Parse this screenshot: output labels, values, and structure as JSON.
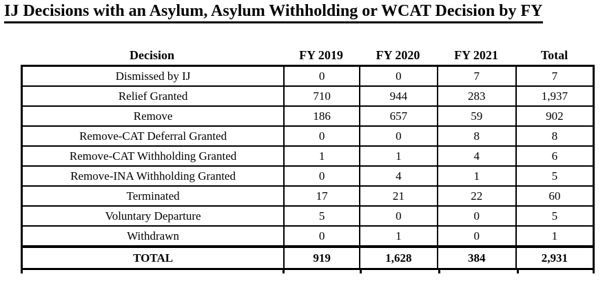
{
  "page_title": "IJ Decisions with an Asylum, Asylum Withholding or WCAT Decision by FY",
  "table": {
    "columns": [
      "Decision",
      "FY 2019",
      "FY 2020",
      "FY 2021",
      "Total"
    ],
    "rows": [
      [
        "Dismissed by IJ",
        "0",
        "0",
        "7",
        "7"
      ],
      [
        "Relief Granted",
        "710",
        "944",
        "283",
        "1,937"
      ],
      [
        "Remove",
        "186",
        "657",
        "59",
        "902"
      ],
      [
        "Remove-CAT Deferral Granted",
        "0",
        "0",
        "8",
        "8"
      ],
      [
        "Remove-CAT Withholding Granted",
        "1",
        "1",
        "4",
        "6"
      ],
      [
        "Remove-INA Withholding Granted",
        "0",
        "4",
        "1",
        "5"
      ],
      [
        "Terminated",
        "17",
        "21",
        "22",
        "60"
      ],
      [
        "Voluntary Departure",
        "5",
        "0",
        "0",
        "5"
      ],
      [
        "Withdrawn",
        "0",
        "1",
        "0",
        "1"
      ]
    ],
    "total_row": [
      "TOTAL",
      "919",
      "1,628",
      "384",
      "2,931"
    ]
  },
  "colors": {
    "text": "#000000",
    "border": "#000000",
    "background": "#ffffff"
  }
}
